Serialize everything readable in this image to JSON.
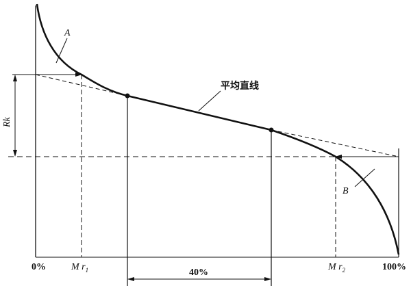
{
  "labels": {
    "curve_a": "A",
    "curve_b": "B",
    "mean_line": "平均直线",
    "rk": "Rk",
    "zero": "0%",
    "hundred": "100%",
    "mr1_main": "M r",
    "mr1_sub": "1",
    "mr2_main": "M r",
    "mr2_sub": "2",
    "span": "40%"
  },
  "colors": {
    "ink": "#111111"
  }
}
